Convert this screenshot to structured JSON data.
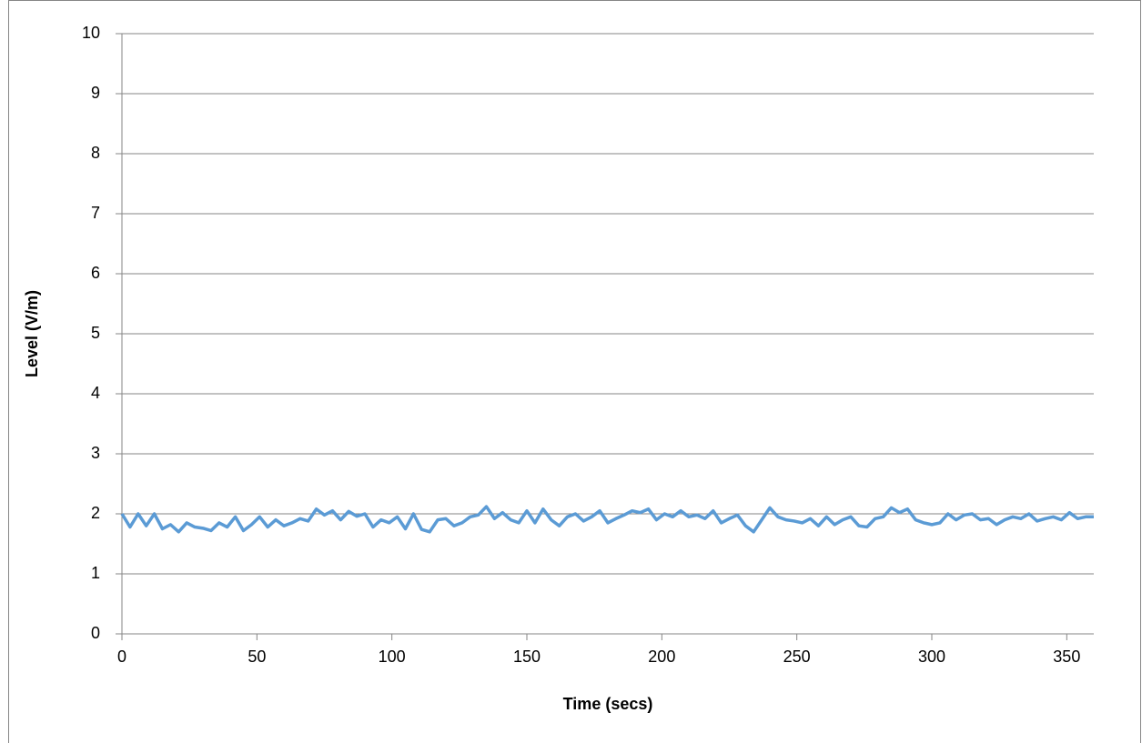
{
  "chart_data": {
    "type": "line",
    "xlabel": "Time (secs)",
    "ylabel": "Level (V/m)",
    "x": [
      0,
      3,
      6,
      9,
      12,
      15,
      18,
      21,
      24,
      27,
      30,
      33,
      36,
      39,
      42,
      45,
      48,
      51,
      54,
      57,
      60,
      63,
      66,
      69,
      72,
      75,
      78,
      81,
      84,
      87,
      90,
      93,
      96,
      99,
      102,
      105,
      108,
      111,
      114,
      117,
      120,
      123,
      126,
      129,
      132,
      135,
      138,
      141,
      144,
      147,
      150,
      153,
      156,
      159,
      162,
      165,
      168,
      171,
      174,
      177,
      180,
      183,
      186,
      189,
      192,
      195,
      198,
      201,
      204,
      207,
      210,
      213,
      216,
      219,
      222,
      225,
      228,
      231,
      234,
      237,
      240,
      243,
      246,
      249,
      252,
      255,
      258,
      261,
      264,
      267,
      270,
      273,
      276,
      279,
      282,
      285,
      288,
      291,
      294,
      297,
      300,
      303,
      306,
      309,
      312,
      315,
      318,
      321,
      324,
      327,
      330,
      333,
      336,
      339,
      342,
      345,
      348,
      351,
      354,
      357,
      360
    ],
    "series": [
      {
        "color": "#5b9bd5",
        "values": [
          2.0,
          1.78,
          2.0,
          1.8,
          2.0,
          1.75,
          1.82,
          1.7,
          1.85,
          1.78,
          1.76,
          1.72,
          1.85,
          1.78,
          1.95,
          1.72,
          1.82,
          1.95,
          1.78,
          1.9,
          1.8,
          1.85,
          1.92,
          1.88,
          2.08,
          1.98,
          2.05,
          1.9,
          2.04,
          1.96,
          2.0,
          1.78,
          1.9,
          1.85,
          1.95,
          1.75,
          2.0,
          1.74,
          1.7,
          1.9,
          1.92,
          1.8,
          1.85,
          1.95,
          1.98,
          2.12,
          1.92,
          2.02,
          1.9,
          1.85,
          2.05,
          1.85,
          2.08,
          1.9,
          1.8,
          1.95,
          2.0,
          1.88,
          1.95,
          2.05,
          1.85,
          1.92,
          1.98,
          2.05,
          2.02,
          2.08,
          1.9,
          2.0,
          1.95,
          2.05,
          1.95,
          1.98,
          1.92,
          2.05,
          1.85,
          1.92,
          1.98,
          1.8,
          1.7,
          1.9,
          2.1,
          1.95,
          1.9,
          1.88,
          1.85,
          1.92,
          1.8,
          1.95,
          1.82,
          1.9,
          1.95,
          1.8,
          1.78,
          1.92,
          1.95,
          2.1,
          2.02,
          2.08,
          1.9,
          1.85,
          1.82,
          1.85,
          2.0,
          1.9,
          1.98,
          2.0,
          1.9,
          1.92,
          1.82,
          1.9,
          1.95,
          1.92,
          2.0,
          1.88,
          1.92,
          1.95,
          1.9,
          2.02,
          1.92,
          1.95,
          1.95
        ]
      }
    ],
    "xlim": [
      0,
      360
    ],
    "xticks": [
      0,
      50,
      100,
      150,
      200,
      250,
      300,
      350
    ],
    "ylim": [
      0,
      10
    ],
    "yticks": [
      0,
      1,
      2,
      3,
      4,
      5,
      6,
      7,
      8,
      9,
      10
    ],
    "grid": true
  }
}
